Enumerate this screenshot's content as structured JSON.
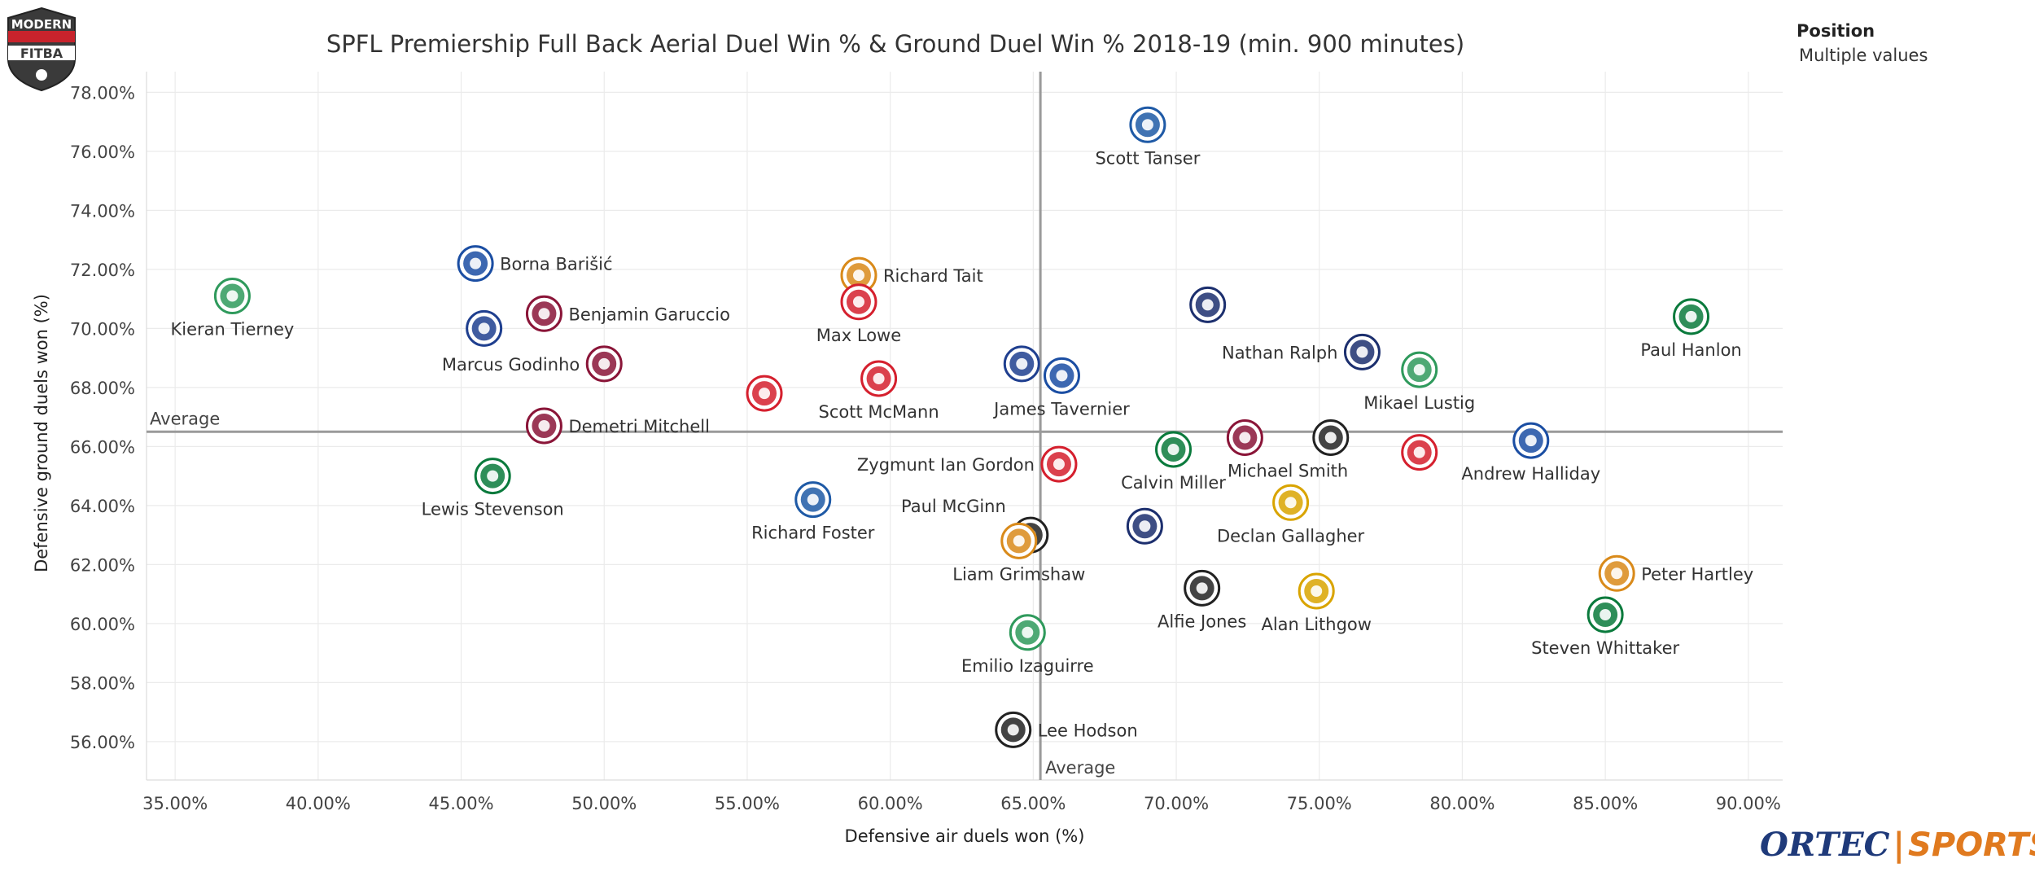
{
  "logo": {
    "line1": "MODERN",
    "line2": "FITBA",
    "colors": {
      "dark": "#3a3a3a",
      "red": "#c8232c"
    }
  },
  "legend": {
    "title": "Position",
    "value": "Multiple values"
  },
  "brand": {
    "part1": "ORTEC",
    "separator": "|",
    "part2": "SPORTS",
    "colors": {
      "ortec": "#1f3a7a",
      "sports": "#e07a1f"
    }
  },
  "club_colors": {
    "rangers": "#1b4ea3",
    "hearts": "#8a1538",
    "hibernian": "#0a7a3c",
    "celtic": "#2f9a5c",
    "aberdeen": "#d5202e",
    "hamilton": "#d5202e",
    "motherwell": "#d98a1a",
    "st_johnstone": "#1f5aa6",
    "kilmarnock": "#1f3f8f",
    "dundee": "#1c2f6e",
    "livingston": "#d9a400",
    "st_mirren": "#222222"
  },
  "chart_data": {
    "type": "scatter",
    "title": "SPFL Premiership Full Back Aerial Duel Win % & Ground Duel Win % 2018-19 (min. 900 minutes)",
    "xlabel": "Defensive air duels won (%)",
    "ylabel": "Defensive ground duels won (%)",
    "xlim": [
      34.0,
      91.2
    ],
    "ylim": [
      54.7,
      78.7
    ],
    "x_ticks": [
      "35.00%",
      "40.00%",
      "45.00%",
      "50.00%",
      "55.00%",
      "60.00%",
      "65.00%",
      "70.00%",
      "75.00%",
      "80.00%",
      "85.00%",
      "90.00%"
    ],
    "x_tick_values": [
      35,
      40,
      45,
      50,
      55,
      60,
      65,
      70,
      75,
      80,
      85,
      90
    ],
    "y_ticks": [
      "56.00%",
      "58.00%",
      "60.00%",
      "62.00%",
      "64.00%",
      "66.00%",
      "68.00%",
      "70.00%",
      "72.00%",
      "74.00%",
      "76.00%",
      "78.00%"
    ],
    "y_tick_values": [
      56,
      58,
      60,
      62,
      64,
      66,
      68,
      70,
      72,
      74,
      76,
      78
    ],
    "grid": true,
    "legend_position": "top-right",
    "average_x": 65.25,
    "average_y": 66.5,
    "average_label": "Average",
    "points": [
      {
        "name": "Scott Tanser",
        "x": 69.0,
        "y": 76.9,
        "club": "st_johnstone",
        "label_pos": "below"
      },
      {
        "name": "Borna Barišić",
        "x": 45.5,
        "y": 72.2,
        "club": "rangers",
        "label_pos": "right"
      },
      {
        "name": "Kieran Tierney",
        "x": 37.0,
        "y": 71.1,
        "club": "celtic",
        "label_pos": "below"
      },
      {
        "name": "Richard Tait",
        "x": 58.9,
        "y": 71.8,
        "club": "motherwell",
        "label_pos": "right"
      },
      {
        "name": "Max Lowe",
        "x": 58.9,
        "y": 70.9,
        "club": "aberdeen",
        "label_pos": "below"
      },
      {
        "name": "Benjamin Garuccio",
        "x": 47.9,
        "y": 70.5,
        "club": "hearts",
        "label_pos": "right"
      },
      {
        "name": "",
        "x": 45.8,
        "y": 70.0,
        "club": "kilmarnock",
        "label_pos": "none"
      },
      {
        "name": "",
        "x": 71.1,
        "y": 70.8,
        "club": "dundee",
        "label_pos": "none"
      },
      {
        "name": "Paul Hanlon",
        "x": 88.0,
        "y": 70.4,
        "club": "hibernian",
        "label_pos": "below"
      },
      {
        "name": "Nathan Ralph",
        "x": 76.5,
        "y": 69.2,
        "club": "dundee",
        "label_pos": "left"
      },
      {
        "name": "Mikael Lustig",
        "x": 78.5,
        "y": 68.6,
        "club": "celtic",
        "label_pos": "below"
      },
      {
        "name": "Marcus Godinho",
        "x": 50.0,
        "y": 68.8,
        "club": "hearts",
        "label_pos": "left"
      },
      {
        "name": "",
        "x": 64.6,
        "y": 68.8,
        "club": "kilmarnock",
        "label_pos": "none"
      },
      {
        "name": "James Tavernier",
        "x": 66.0,
        "y": 68.4,
        "club": "rangers",
        "label_pos": "below"
      },
      {
        "name": "Scott McMann",
        "x": 59.6,
        "y": 68.3,
        "club": "hamilton",
        "label_pos": "below"
      },
      {
        "name": "",
        "x": 55.6,
        "y": 67.8,
        "club": "hamilton",
        "label_pos": "none"
      },
      {
        "name": "Demetri Mitchell",
        "x": 47.9,
        "y": 66.7,
        "club": "hearts",
        "label_pos": "right"
      },
      {
        "name": "Michael Smith",
        "x": 72.4,
        "y": 66.3,
        "club": "hearts",
        "label_pos": "none"
      },
      {
        "name": "",
        "x": 75.4,
        "y": 66.3,
        "club": "st_mirren",
        "label_pos": "none"
      },
      {
        "name": "Andrew Halliday",
        "x": 82.4,
        "y": 66.2,
        "club": "rangers",
        "label_pos": "below"
      },
      {
        "name": "Calvin Miller",
        "x": 69.9,
        "y": 65.9,
        "club": "hibernian",
        "label_pos": "below"
      },
      {
        "name": "",
        "x": 78.5,
        "y": 65.8,
        "club": "aberdeen",
        "label_pos": "none"
      },
      {
        "name": "Zygmunt Ian Gordon",
        "x": 65.9,
        "y": 65.4,
        "club": "hamilton",
        "label_pos": "left"
      },
      {
        "name": "Lewis Stevenson",
        "x": 46.1,
        "y": 65.0,
        "club": "hibernian",
        "label_pos": "below"
      },
      {
        "name": "Declan Gallagher",
        "x": 74.0,
        "y": 64.1,
        "club": "livingston",
        "label_pos": "below"
      },
      {
        "name": "Richard Foster",
        "x": 57.3,
        "y": 64.2,
        "club": "st_johnstone",
        "label_pos": "below"
      },
      {
        "name": "Paul McGinn",
        "x": 64.9,
        "y": 63.0,
        "club": "st_mirren",
        "label_pos": "none"
      },
      {
        "name": "",
        "x": 68.9,
        "y": 63.3,
        "club": "dundee",
        "label_pos": "none"
      },
      {
        "name": "Liam Grimshaw",
        "x": 64.5,
        "y": 62.8,
        "club": "motherwell",
        "label_pos": "below"
      },
      {
        "name": "Peter Hartley",
        "x": 85.4,
        "y": 61.7,
        "club": "motherwell",
        "label_pos": "right"
      },
      {
        "name": "Alfie Jones",
        "x": 70.9,
        "y": 61.2,
        "club": "st_mirren",
        "label_pos": "below"
      },
      {
        "name": "Alan Lithgow",
        "x": 74.9,
        "y": 61.1,
        "club": "livingston",
        "label_pos": "below"
      },
      {
        "name": "Steven Whittaker",
        "x": 85.0,
        "y": 60.3,
        "club": "hibernian",
        "label_pos": "below"
      },
      {
        "name": "Emilio Izaguirre",
        "x": 64.8,
        "y": 59.7,
        "club": "celtic",
        "label_pos": "below"
      },
      {
        "name": "Lee Hodson",
        "x": 64.3,
        "y": 56.4,
        "club": "st_mirren",
        "label_pos": "right"
      }
    ]
  }
}
